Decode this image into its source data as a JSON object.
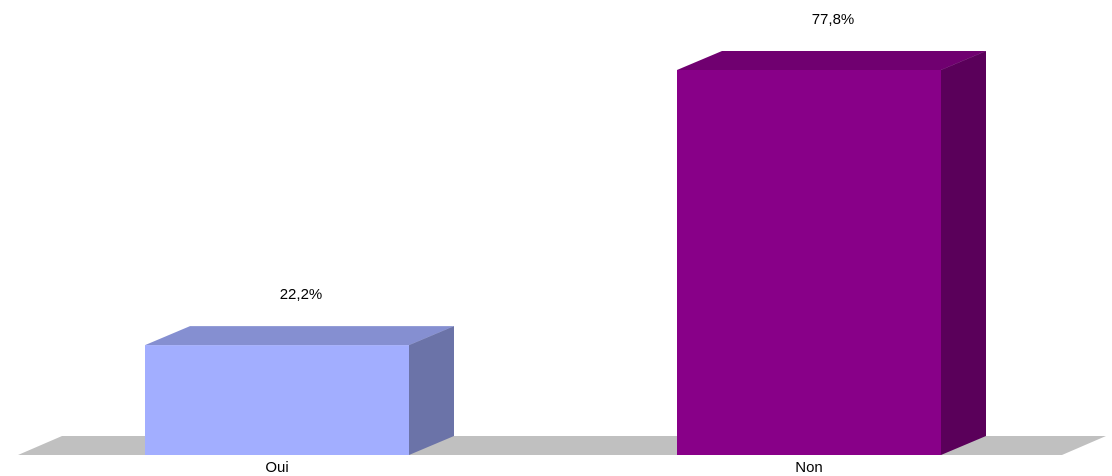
{
  "chart_data": {
    "type": "bar",
    "categories": [
      "Oui",
      "Non"
    ],
    "values": [
      22.2,
      77.8
    ],
    "data_labels": [
      "22,2%",
      "77,8%"
    ],
    "ylim": [
      0,
      77.8
    ],
    "unit": "%",
    "grid": false,
    "legend": "none",
    "colors": {
      "bars": [
        "#A2AEFF",
        "#880088"
      ],
      "floor": "#C0C0C0"
    }
  }
}
